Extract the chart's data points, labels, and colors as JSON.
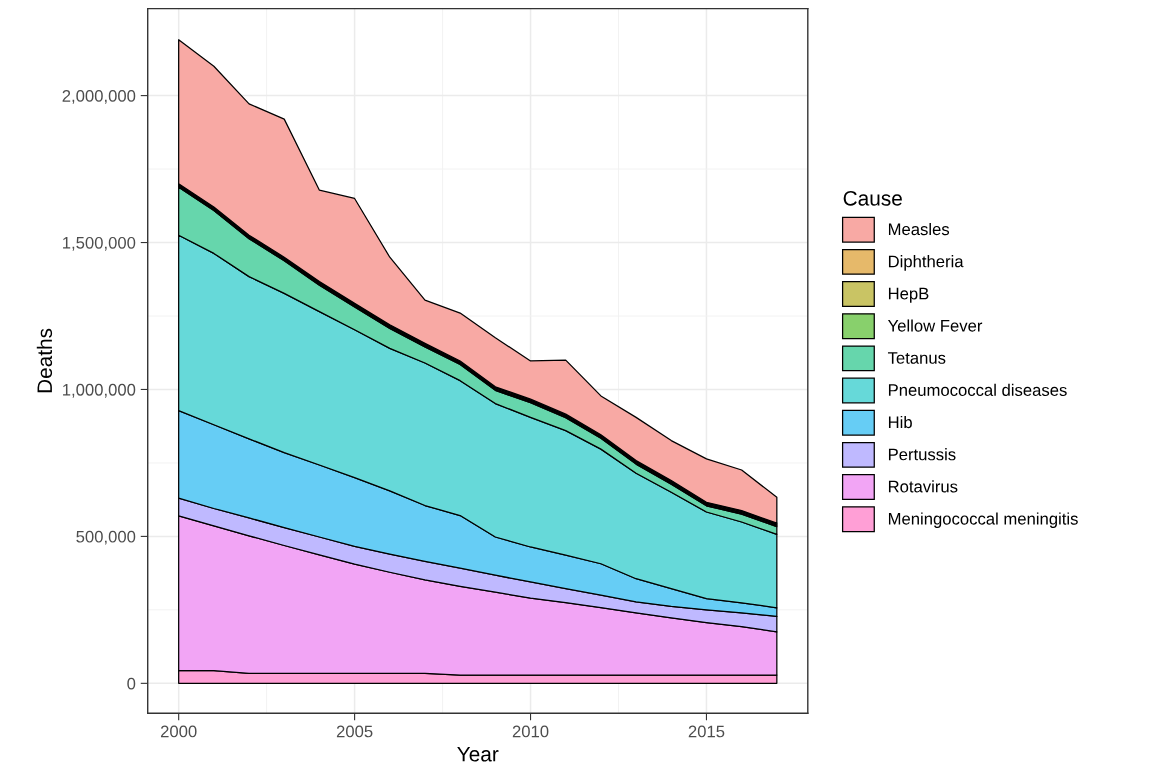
{
  "chart_data": {
    "type": "area",
    "stacked": true,
    "xlabel": "Year",
    "ylabel": "Deaths",
    "legend_title": "Cause",
    "legend": "right",
    "grid": true,
    "x": [
      2000,
      2001,
      2002,
      2003,
      2004,
      2005,
      2006,
      2007,
      2008,
      2009,
      2010,
      2011,
      2012,
      2013,
      2014,
      2015,
      2016,
      2017
    ],
    "xlim": [
      1999.12,
      2017.88
    ],
    "xticks": [
      2000,
      2005,
      2010,
      2015
    ],
    "ylim": [
      -102000,
      2296000
    ],
    "yticks": [
      {
        "value": 0,
        "label": "0"
      },
      {
        "value": 500000,
        "label": "500,000"
      },
      {
        "value": 1000000,
        "label": "1,000,000"
      },
      {
        "value": 1500000,
        "label": "1,500,000"
      },
      {
        "value": 2000000,
        "label": "2,000,000"
      }
    ],
    "series": [
      {
        "name": "Meningococcal meningitis",
        "color": "#ff9fd6",
        "values": [
          43000,
          43000,
          34000,
          34000,
          34000,
          34000,
          34000,
          34000,
          28000,
          28000,
          28000,
          28000,
          28000,
          28000,
          28000,
          28000,
          28000,
          28000
        ]
      },
      {
        "name": "Rotavirus",
        "color": "#f2a5f5",
        "values": [
          527000,
          493000,
          468000,
          435000,
          403000,
          372000,
          344000,
          318000,
          302000,
          282000,
          262000,
          247000,
          230000,
          212000,
          195000,
          179000,
          165000,
          147000
        ]
      },
      {
        "name": "Pertussis",
        "color": "#bfb9ff",
        "values": [
          60000,
          59000,
          61000,
          61000,
          61000,
          60000,
          62000,
          63000,
          62000,
          58000,
          55000,
          47000,
          42000,
          37000,
          39000,
          43000,
          47000,
          53000
        ]
      },
      {
        "name": "Hib",
        "color": "#66cdf5",
        "values": [
          298000,
          285000,
          269000,
          255000,
          245000,
          234000,
          215000,
          190000,
          179000,
          130000,
          119000,
          114000,
          107000,
          79000,
          60000,
          38000,
          34000,
          29000
        ]
      },
      {
        "name": "Pneumococcal diseases",
        "color": "#66d9d9",
        "values": [
          597000,
          583000,
          552000,
          542000,
          522000,
          503000,
          485000,
          485000,
          459000,
          454000,
          441000,
          424000,
          390000,
          359000,
          328000,
          295000,
          275000,
          250000
        ]
      },
      {
        "name": "Tetanus",
        "color": "#66d6ac",
        "values": [
          163000,
          146000,
          129000,
          111000,
          90000,
          78000,
          68000,
          55000,
          55000,
          45000,
          50000,
          44000,
          37000,
          31000,
          28000,
          21000,
          27000,
          26000
        ]
      },
      {
        "name": "Yellow Fever",
        "color": "#88d06c",
        "values": [
          4000,
          4000,
          4000,
          4000,
          4000,
          4000,
          4000,
          4000,
          4000,
          4000,
          4000,
          4000,
          4000,
          4000,
          4000,
          4000,
          4000,
          4000
        ]
      },
      {
        "name": "HepB",
        "color": "#c9c464",
        "values": [
          4000,
          4000,
          4000,
          4000,
          4000,
          4000,
          4000,
          4000,
          4000,
          4000,
          4000,
          4000,
          4000,
          4000,
          4000,
          4000,
          4000,
          4000
        ]
      },
      {
        "name": "Diphtheria",
        "color": "#e6b96a",
        "values": [
          4000,
          4000,
          4000,
          4000,
          4000,
          4000,
          4000,
          4000,
          4000,
          4000,
          4000,
          4000,
          4000,
          4000,
          4000,
          4000,
          4000,
          4000
        ]
      },
      {
        "name": "Measles",
        "color": "#f8a9a4",
        "values": [
          490000,
          479000,
          447000,
          470000,
          311000,
          357000,
          230000,
          147000,
          163000,
          167000,
          130000,
          184000,
          132000,
          147000,
          136000,
          148000,
          138000,
          88000
        ]
      }
    ]
  }
}
